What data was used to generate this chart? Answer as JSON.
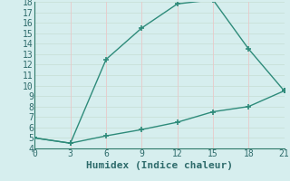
{
  "line1_x": [
    0,
    3,
    6,
    9,
    12,
    15,
    18,
    21
  ],
  "line1_y": [
    5.0,
    4.5,
    12.5,
    15.5,
    17.8,
    18.2,
    13.5,
    9.5
  ],
  "line2_x": [
    0,
    3,
    6,
    9,
    12,
    15,
    18,
    21
  ],
  "line2_y": [
    5.0,
    4.5,
    5.2,
    5.8,
    6.5,
    7.5,
    8.0,
    9.5
  ],
  "line_color": "#2e8b7a",
  "bg_color": "#d6eeee",
  "grid_color_h": "#c8e0d8",
  "grid_color_v": "#e8c8c8",
  "xlabel": "Humidex (Indice chaleur)",
  "xlim": [
    0,
    21
  ],
  "ylim": [
    4,
    18
  ],
  "xticks": [
    0,
    3,
    6,
    9,
    12,
    15,
    18,
    21
  ],
  "yticks": [
    4,
    5,
    6,
    7,
    8,
    9,
    10,
    11,
    12,
    13,
    14,
    15,
    16,
    17,
    18
  ],
  "font_color": "#2e6b6b",
  "font_size": 7,
  "xlabel_fontsize": 8,
  "linewidth": 1.0,
  "marker": "+",
  "markersize": 5,
  "markeredgewidth": 1.2,
  "spine_color": "#2e7a6a"
}
